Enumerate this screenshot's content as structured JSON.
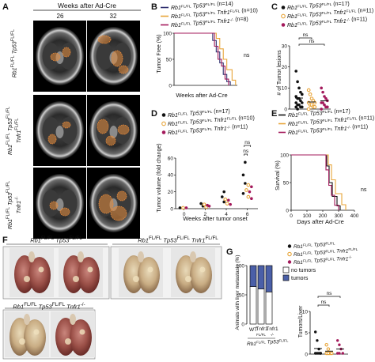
{
  "panels": {
    "A": {
      "letter": "A",
      "header": "Weeks after Ad-Cre",
      "weeks": [
        "26",
        "32"
      ],
      "rows": [
        {
          "label_html": "<i>Rb1</i><sup>FL/FL</sup> <i>Tp53</i><sup>FL/FL</sup>"
        },
        {
          "label_html": "<i>Rb1</i><sup>FL/FL</sup> <i>Tp53</i><sup>FL/FL</sup><br><i>Tnfr1</i><sup>FL/FL</sup>"
        },
        {
          "label_html": "<i>Rb1</i><sup>FL/FL</sup> <i>Tp53</i><sup>FL/FL</sup><br><i>Tnfr1</i><sup>-/-</sup>"
        }
      ]
    },
    "B": {
      "letter": "B",
      "ylabel": "Tumor Free (%)",
      "xlabel": "Weeks after Ad-Cre",
      "yticks": [
        "0",
        "50",
        "100"
      ],
      "ns": "ns",
      "legend": [
        {
          "name": "Rb1FL/FL Tp53FL/FL (n=14)",
          "color": "#2e2e6e"
        },
        {
          "name": "Rb1FL/FL Tp53FL/FL Tnfr1FL/FL (n=10)",
          "color": "#e8a53a"
        },
        {
          "name": "Rb1FL/FL Tp53FL/FL Tnfr1-/- (n=8)",
          "color": "#a3195b"
        }
      ]
    },
    "C": {
      "letter": "C",
      "ylabel": "# of Tumor lesions",
      "yticks": [
        "0",
        "10",
        "20",
        "30"
      ],
      "ns": "ns",
      "legend": [
        {
          "name": "Rb1FL/FL Tp53FL/FL (n=17)"
        },
        {
          "name": "Rb1FL/FL Tp53FL/FL Tnfr1FL/FL (n=11)"
        },
        {
          "name": "Rb1FL/FL Tp53FL/FL Tnfr1-/- (n=11)"
        }
      ]
    },
    "D": {
      "letter": "D",
      "ylabel": "Tumor volume (fold change)",
      "xlabel": "Weeks after tumor onset",
      "yticks": [
        "0",
        "20",
        "40",
        "60"
      ],
      "xticks": [
        "0",
        "2",
        "4",
        "6"
      ],
      "ns": "ns",
      "legend": [
        {
          "name": "Rb1FL/FL Tp53FL/FL (n=17)"
        },
        {
          "name": "Rb1FL/FL Tp53FL/FL Tnfr1FL/FL (n=10)"
        },
        {
          "name": "Rb1FL/FL Tp53FL/FL Tnfr1-/- (n=11)"
        }
      ]
    },
    "E": {
      "letter": "E",
      "ylabel": "Survival (%)",
      "xlabel": "Days after Ad-Cre",
      "yticks": [
        "0",
        "50",
        "100"
      ],
      "xticks": [
        "0",
        "100",
        "200",
        "300",
        "400"
      ],
      "ns": "ns",
      "legend": [
        {
          "name": "Rb1FL/FL Tp53FL/FL (n=17)"
        },
        {
          "name": "Rb1FL/FL Tp53FL/FL Tnfr1FL/FL (n=11)"
        },
        {
          "name": "Rb1FL/FL Tp53FL/FL Tnfr1-/- (n=11)"
        }
      ]
    },
    "F": {
      "letter": "F",
      "groups": [
        {
          "label_html": "<i>Rb1</i><sup>FL/FL</sup> <i>Tp53</i><sup>FL/FL</sup>"
        },
        {
          "label_html": "<i>Rb1</i><sup>FL/FL</sup> <i>Tp53</i><sup>FL/FL</sup> <i>Tnfr1</i><sup>-/-</sup>"
        },
        {
          "label_html": "<i>Rb1</i><sup>FL/FL</sup> <i>Tp53</i><sup>FL/FL</sup> <i>Tnfr1</i><sup>FL/FL</sup>"
        }
      ]
    },
    "G": {
      "letter": "G",
      "ylabel": "Animals with liver metastasis (%)",
      "yticks": [
        "0",
        "50",
        "100"
      ],
      "xlabels": [
        "WT",
        "Tnfr1",
        "Tnfr1"
      ],
      "xsub": [
        "FL/FL",
        "-/-"
      ],
      "xgroup": "Rb1FL/FL Tp53FL/FL",
      "legend_boxes": [
        {
          "name": "no tumors",
          "color": "#ffffff"
        },
        {
          "name": "tumors",
          "color": "#4a5fa8"
        }
      ],
      "dot_ylabel": "Tumors/Liver",
      "dot_yticks": [
        "0",
        "5",
        "10"
      ],
      "ns": "ns",
      "dot_legend": [
        {
          "name": "Rb1FL/FL Tp53FL/FL"
        },
        {
          "name": "Rb1FL/FL Tp53FL/FL Tnfr1FL/FL"
        },
        {
          "name": "Rb1FL/FL Tp53FL/FL Tnfr1-/-"
        }
      ]
    }
  },
  "colors": {
    "black": "#111111",
    "orange": "#e8a53a",
    "magenta": "#a3195b",
    "navy": "#2e2e6e",
    "tumor": "#4a5fa8"
  },
  "chart_data": [
    {
      "panel": "B",
      "type": "line",
      "ylabel": "Tumor Free (%)",
      "xlabel": "Weeks after Ad-Cre",
      "ylim": [
        0,
        100
      ],
      "series": [
        {
          "name": "Rb1FL/FL Tp53FL/FL (n=14)",
          "x": [
            0,
            20,
            22,
            24,
            26,
            28,
            30,
            32
          ],
          "y": [
            100,
            100,
            86,
            64,
            43,
            21,
            7,
            0
          ]
        },
        {
          "name": "Rb1FL/FL Tp53FL/FL Tnfr1FL/FL (n=10)",
          "x": [
            0,
            22,
            24,
            26,
            28,
            30,
            33,
            35
          ],
          "y": [
            100,
            100,
            90,
            70,
            50,
            30,
            10,
            0
          ]
        },
        {
          "name": "Rb1FL/FL Tp53FL/FL Tnfr1-/- (n=8)",
          "x": [
            0,
            21,
            23,
            25,
            27,
            29,
            31
          ],
          "y": [
            100,
            100,
            75,
            50,
            37,
            12,
            0
          ]
        }
      ]
    },
    {
      "panel": "E",
      "type": "line",
      "ylabel": "Survival (%)",
      "xlabel": "Days after Ad-Cre",
      "xlim": [
        0,
        400
      ],
      "ylim": [
        0,
        100
      ],
      "series": [
        {
          "name": "Rb1FL/FL Tp53FL/FL (n=17)",
          "x": [
            0,
            210,
            225,
            240,
            260,
            290,
            310
          ],
          "y": [
            100,
            100,
            80,
            50,
            25,
            8,
            0
          ]
        },
        {
          "name": "Rb1FL/FL Tp53FL/FL Tnfr1FL/FL (n=11)",
          "x": [
            0,
            220,
            235,
            255,
            280,
            320,
            345
          ],
          "y": [
            100,
            100,
            82,
            55,
            30,
            10,
            0
          ]
        },
        {
          "name": "Rb1FL/FL Tp53FL/FL Tnfr1-/- (n=11)",
          "x": [
            0,
            205,
            220,
            238,
            255,
            275,
            300
          ],
          "y": [
            100,
            100,
            73,
            45,
            27,
            9,
            0
          ]
        }
      ]
    },
    {
      "panel": "C",
      "type": "scatter",
      "ylabel": "# of Tumor lesions",
      "ylim": [
        0,
        30
      ],
      "series": [
        {
          "name": "Rb1FL/FL Tp53FL/FL (n=17)",
          "values": [
            18,
            13,
            10,
            8,
            7,
            6,
            5,
            5,
            4,
            3,
            3,
            2,
            2,
            1,
            1,
            1,
            0
          ]
        },
        {
          "name": "Rb1FL/FL Tp53FL/FL Tnfr1FL/FL (n=11)",
          "values": [
            9,
            7,
            5,
            4,
            3,
            3,
            2,
            2,
            1,
            1,
            0
          ]
        },
        {
          "name": "Rb1FL/FL Tp53FL/FL Tnfr1-/- (n=11)",
          "values": [
            10,
            8,
            6,
            5,
            4,
            3,
            3,
            2,
            1,
            1,
            0
          ]
        }
      ]
    },
    {
      "panel": "D",
      "type": "scatter",
      "ylabel": "Tumor volume (fold change)",
      "xlabel": "Weeks after tumor onset",
      "ylim": [
        0,
        60
      ],
      "series": [
        {
          "name": "Rb1FL/FL Tp53FL/FL (n=17)",
          "x": [
            0,
            2,
            2,
            4,
            4,
            4,
            6,
            6,
            6,
            6
          ],
          "y": [
            1,
            3,
            6,
            8,
            14,
            20,
            18,
            30,
            40,
            55
          ]
        },
        {
          "name": "Rb1FL/FL Tp53FL/FL Tnfr1FL/FL (n=10)",
          "x": [
            0,
            2,
            2,
            4,
            4,
            6,
            6,
            6
          ],
          "y": [
            1,
            2,
            5,
            6,
            11,
            14,
            22,
            28
          ]
        },
        {
          "name": "Rb1FL/FL Tp53FL/FL Tnfr1-/- (n=11)",
          "x": [
            0,
            2,
            2,
            4,
            4,
            6,
            6,
            6
          ],
          "y": [
            1,
            3,
            4,
            5,
            10,
            12,
            20,
            26
          ]
        }
      ]
    },
    {
      "panel": "G",
      "type": "bar",
      "ylabel": "Animals with liver metastasis (%)",
      "categories": [
        "WT",
        "Tnfr1 FL/FL",
        "Tnfr1 -/-"
      ],
      "ylim": [
        0,
        100
      ],
      "series": [
        {
          "name": "tumors",
          "values": [
            36,
            40,
            45
          ]
        },
        {
          "name": "no tumors",
          "values": [
            64,
            60,
            55
          ]
        }
      ]
    },
    {
      "panel": "G-right",
      "type": "scatter",
      "ylabel": "Tumors/Liver",
      "ylim": [
        0,
        10
      ],
      "series": [
        {
          "name": "Rb1FL/FL Tp53FL/FL",
          "values": [
            5,
            3,
            1,
            0,
            0,
            0,
            0,
            0
          ]
        },
        {
          "name": "Rb1FL/FL Tp53FL/FL Tnfr1FL/FL",
          "values": [
            2,
            1,
            0,
            0,
            0,
            0
          ]
        },
        {
          "name": "Rb1FL/FL Tp53FL/FL Tnfr1-/-",
          "values": [
            3,
            2,
            1,
            0,
            0,
            0
          ]
        }
      ]
    }
  ]
}
